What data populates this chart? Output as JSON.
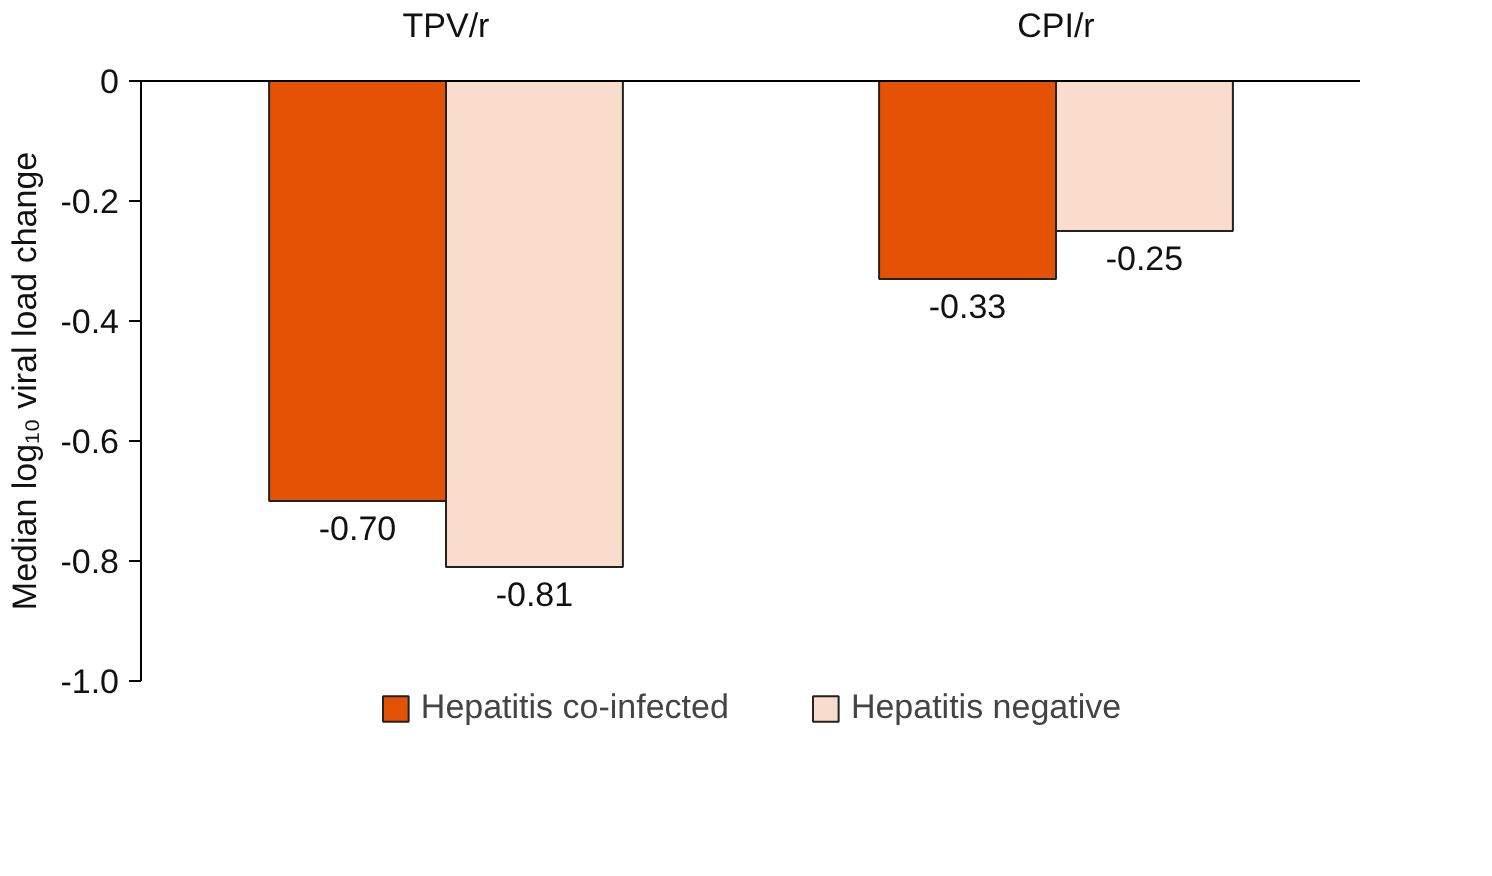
{
  "chart_data": {
    "type": "bar",
    "ylabel": "Median log₁₀ viral load change",
    "categories": [
      "TPV/r",
      "CPI/r"
    ],
    "series": [
      {
        "name": "Hepatitis co-infected",
        "color": "#e35205",
        "values": [
          -0.7,
          -0.33
        ],
        "value_labels": [
          "-0.70",
          "-0.33"
        ]
      },
      {
        "name": "Hepatitis negative",
        "color": "#f9dccc",
        "values": [
          -0.81,
          -0.25
        ],
        "value_labels": [
          "-0.81",
          "-0.25"
        ]
      }
    ],
    "ylim": [
      -1.0,
      0
    ],
    "yticks": [
      {
        "value": -1.0,
        "label": "-1.0"
      },
      -0.8,
      -0.6,
      -0.4,
      -0.2,
      0
    ],
    "legend": "bottom"
  }
}
